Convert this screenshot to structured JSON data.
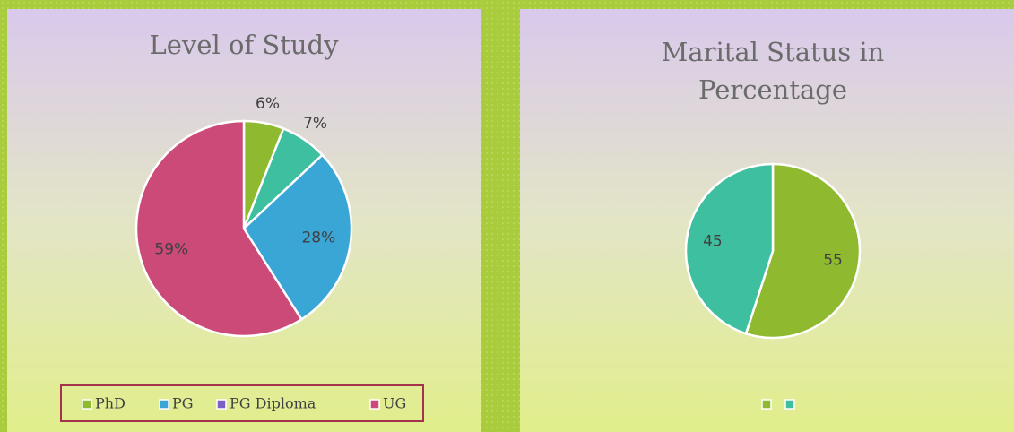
{
  "chart_data": [
    {
      "type": "pie",
      "title": "Level of Study",
      "categories": [
        "PhD",
        "PG",
        "PG Diploma",
        "UG"
      ],
      "values": [
        6,
        7,
        28,
        59
      ],
      "value_labels": [
        "6%",
        "7%",
        "28%",
        "59%"
      ],
      "colors": [
        "#8fba2f",
        "#3ebfa0",
        "#3aa6d6",
        "#cc4a77"
      ],
      "legend_colors": [
        "#8fba2f",
        "#3aa6d6",
        "#7c5fc4",
        "#cc4a77"
      ]
    },
    {
      "type": "pie",
      "title": "Marital Status  in Percentage",
      "categories": [
        null,
        null
      ],
      "values": [
        55,
        45
      ],
      "colors": [
        "#8fba2f",
        "#3ebfa0"
      ],
      "legend_colors": [
        "#8fba2f",
        "#3ebfa0"
      ]
    }
  ]
}
